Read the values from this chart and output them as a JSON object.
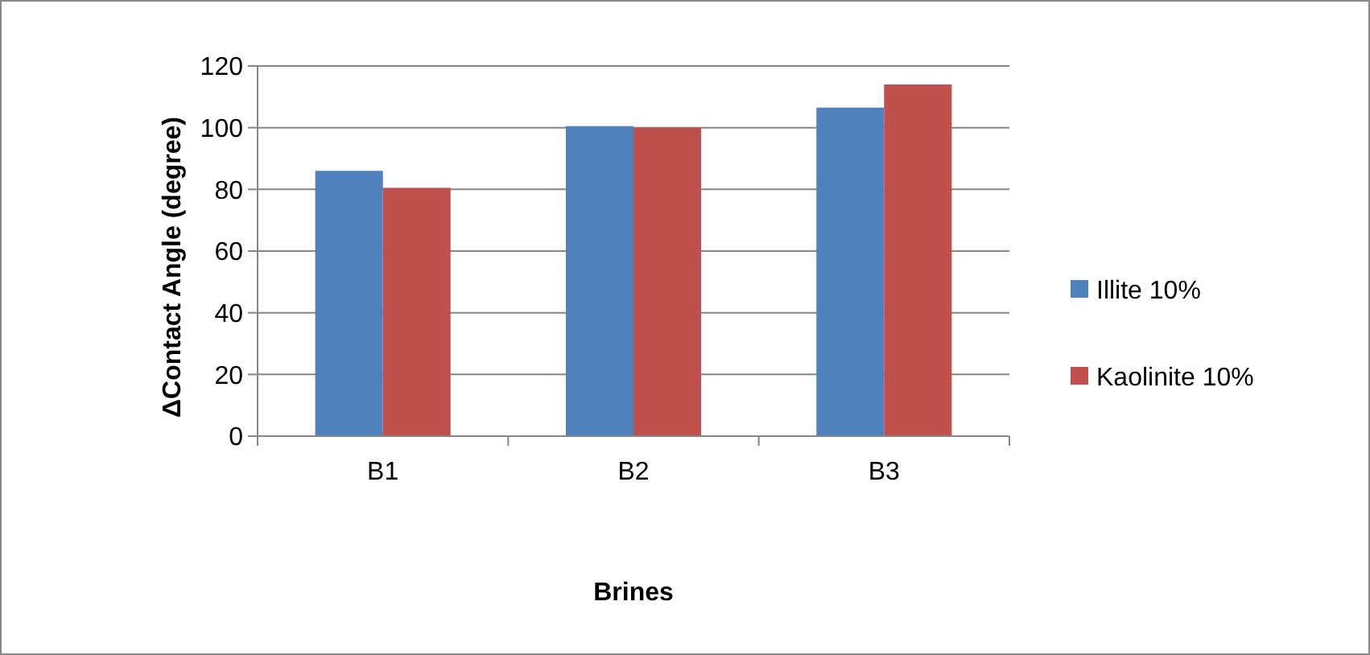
{
  "chart_data": {
    "type": "bar",
    "xlabel": "Brines",
    "ylabel": "ΔContact Angle (degree)",
    "categories": [
      "B1",
      "B2",
      "B3"
    ],
    "series": [
      {
        "name": "Illite 10%",
        "color": "#4f81bd",
        "values": [
          86,
          100.5,
          106.5
        ]
      },
      {
        "name": "Kaolinite 10%",
        "color": "#c0504d",
        "values": [
          80.5,
          100,
          114
        ]
      }
    ],
    "ylim": [
      0,
      120
    ],
    "yticks": [
      0,
      20,
      40,
      60,
      80,
      100,
      120
    ],
    "grid": "y",
    "legend": "right"
  }
}
